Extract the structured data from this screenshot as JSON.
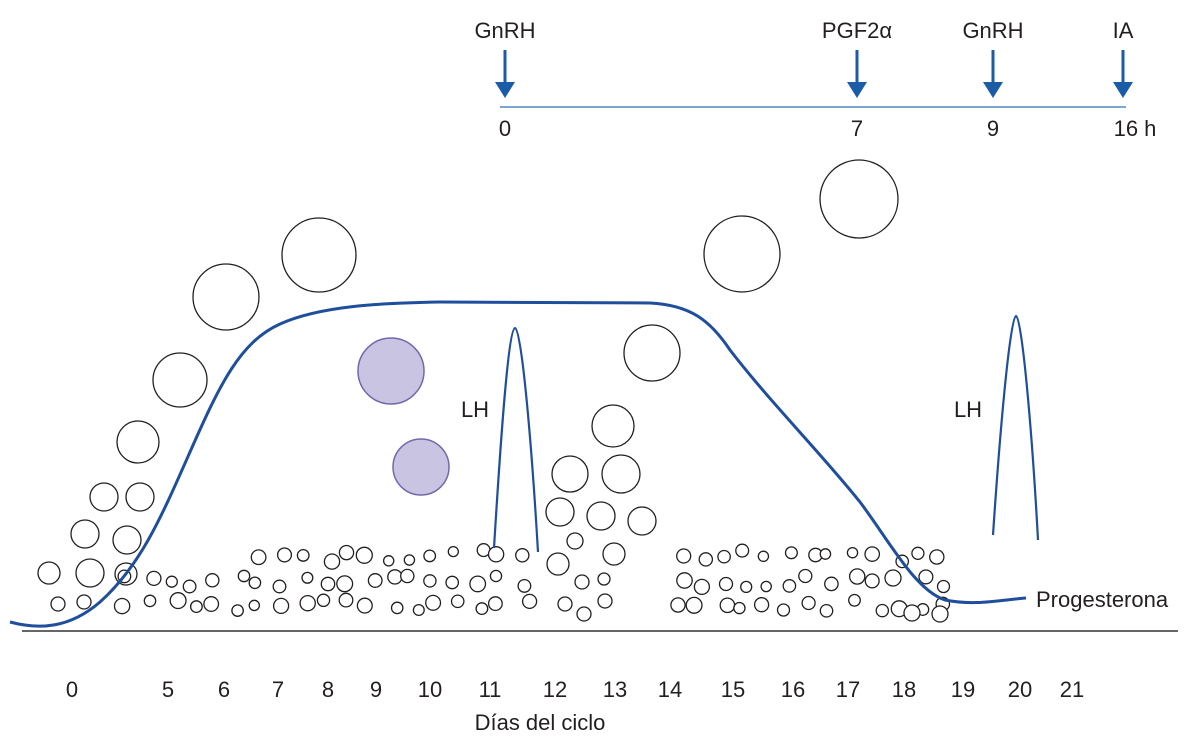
{
  "protocol": {
    "events": [
      {
        "label": "GnRH",
        "time": "0"
      },
      {
        "label": "PGF2α",
        "time": "7"
      },
      {
        "label": "GnRH",
        "time": "9"
      },
      {
        "label": "IA",
        "time": "16 h"
      }
    ]
  },
  "curves": {
    "lh_labels": [
      "LH",
      "LH"
    ],
    "progesterone": "Progesterona"
  },
  "x_axis": {
    "days": [
      "0",
      "5",
      "6",
      "7",
      "8",
      "9",
      "10",
      "11",
      "12",
      "13",
      "14",
      "15",
      "16",
      "17",
      "18",
      "19",
      "20",
      "21"
    ],
    "title": "Días del ciclo"
  }
}
